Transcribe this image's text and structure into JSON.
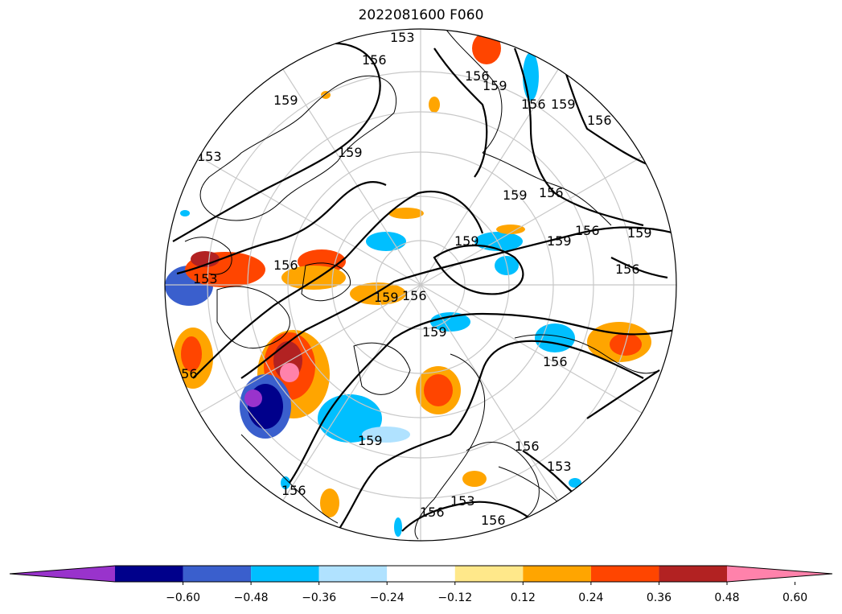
{
  "title": "2022081600 F060",
  "colorbar": {
    "ticks": [
      "−0.60",
      "−0.48",
      "−0.36",
      "−0.24",
      "−0.12",
      "0.12",
      "0.24",
      "0.36",
      "0.48",
      "0.60"
    ],
    "colors": [
      "#9933cc",
      "#00008b",
      "#3a5fcd",
      "#00bfff",
      "#b0e2ff",
      "#ffffff",
      "#ffe88a",
      "#ffa500",
      "#ff4500",
      "#b22222",
      "#ff82ab"
    ]
  },
  "contour_labels": [
    "153",
    "156",
    "159"
  ]
}
